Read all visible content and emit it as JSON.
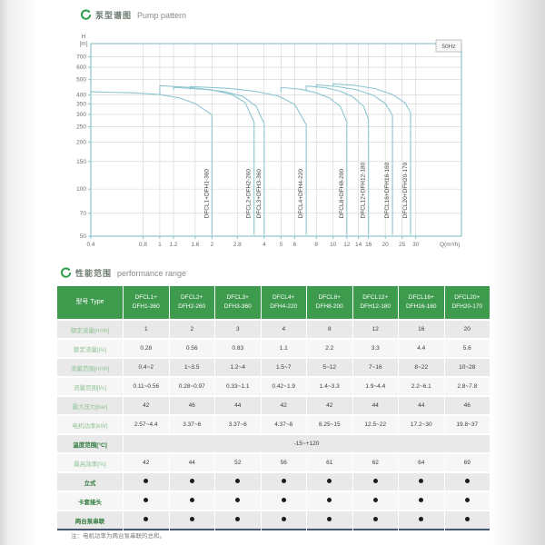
{
  "colors": {
    "brand_green": "#2f9e4c",
    "table_header_green": "#3e9b4e",
    "row_label_green": "#8fc394",
    "curve_blue": "#8cc5d0",
    "axis_teal": "#86bfca",
    "grid_gray": "#d2d2d2"
  },
  "section1": {
    "title_zh": "泵型谱图",
    "title_en": "Pump pattern"
  },
  "section2": {
    "title_zh": "性能范围",
    "title_en": "performance range"
  },
  "chart_data": {
    "type": "line",
    "title": "泵型谱图 Pump pattern",
    "freq_label": "50Hz",
    "ylabel_line1": "H",
    "ylabel_line2": "[m]",
    "xlabel": "Q(m³/h)",
    "x_scale": "log",
    "y_scale": "log",
    "xlim": [
      0.4,
      55
    ],
    "ylim": [
      50,
      850
    ],
    "xticks": [
      0.4,
      0.8,
      1,
      1.2,
      1.6,
      2,
      2.8,
      4,
      5,
      6,
      8,
      10,
      12,
      14,
      16,
      20,
      25,
      30
    ],
    "yticks": [
      700,
      600,
      500,
      400,
      350,
      300,
      250,
      200,
      150,
      100,
      70,
      50
    ],
    "grid": true,
    "series": [
      {
        "name": "DFCL1+DFH1-360",
        "points": [
          [
            0.4,
            418
          ],
          [
            0.7,
            412
          ],
          [
            1.0,
            402
          ],
          [
            1.3,
            382
          ],
          [
            1.6,
            352
          ],
          [
            2,
            298
          ]
        ]
      },
      {
        "name": "DFCL2+DFH2-260",
        "points": [
          [
            1.0,
            404
          ],
          [
            1.0,
            458
          ],
          [
            1.5,
            446
          ],
          [
            2.0,
            430
          ],
          [
            2.6,
            402
          ],
          [
            3.1,
            358
          ],
          [
            3.5,
            268
          ]
        ]
      },
      {
        "name": "DFCL3+DFH3-360",
        "points": [
          [
            1.2,
            430
          ],
          [
            1.2,
            446
          ],
          [
            1.8,
            434
          ],
          [
            2.4,
            418
          ],
          [
            3.0,
            392
          ],
          [
            3.6,
            338
          ],
          [
            4,
            262
          ]
        ]
      },
      {
        "name": "DFCL4+DFH4-220",
        "points": [
          [
            1.5,
            432
          ],
          [
            1.5,
            452
          ],
          [
            2.5,
            440
          ],
          [
            3.5,
            422
          ],
          [
            4.8,
            394
          ],
          [
            6.0,
            348
          ],
          [
            7,
            258
          ]
        ]
      },
      {
        "name": "DFCL8+DFH8-200",
        "points": [
          [
            5.0,
            416
          ],
          [
            5.0,
            446
          ],
          [
            6.5,
            434
          ],
          [
            8.0,
            412
          ],
          [
            9.5,
            382
          ],
          [
            11,
            338
          ],
          [
            12,
            268
          ]
        ]
      },
      {
        "name": "DFCL12+DFH12-180",
        "points": [
          [
            7.0,
            430
          ],
          [
            7.0,
            456
          ],
          [
            9.0,
            444
          ],
          [
            11,
            422
          ],
          [
            13,
            388
          ],
          [
            15,
            338
          ],
          [
            16,
            278
          ]
        ]
      },
      {
        "name": "DFCL16+DFH16-160",
        "points": [
          [
            8.0,
            442
          ],
          [
            8.0,
            464
          ],
          [
            10.5,
            452
          ],
          [
            13.5,
            432
          ],
          [
            17,
            398
          ],
          [
            20,
            352
          ],
          [
            22,
            296
          ]
        ]
      },
      {
        "name": "DFCL20+DFH20-170",
        "points": [
          [
            10,
            452
          ],
          [
            10,
            470
          ],
          [
            13.5,
            459
          ],
          [
            17.5,
            438
          ],
          [
            22,
            402
          ],
          [
            26,
            356
          ],
          [
            28,
            308
          ]
        ]
      }
    ]
  },
  "table": {
    "type_label": "型号 Type",
    "columns": [
      "DFCL1+\nDFH1-360",
      "DFCL2+\nDFH2-260",
      "DFCL3+\nDFH3-360",
      "DFCL4+\nDFH4-220",
      "DFCL8+\nDFH8-200",
      "DFCL12+\nDFH12-180",
      "DFCL16+\nDFH16-160",
      "DFCL20+\nDFH20-170"
    ],
    "rows": [
      {
        "label": "额定流量[m³/h]",
        "style": "normal",
        "values": [
          "1",
          "2",
          "3",
          "4",
          "8",
          "12",
          "16",
          "20"
        ]
      },
      {
        "label": "额定流量[l/s]",
        "style": "normal",
        "values": [
          "0.28",
          "0.56",
          "0.83",
          "1.1",
          "2.2",
          "3.3",
          "4.4",
          "5.6"
        ]
      },
      {
        "label": "流量范围[m³/h]",
        "style": "normal",
        "values": [
          "0.4~2",
          "1~3.5",
          "1.2~4",
          "1.5~7",
          "5~12",
          "7~16",
          "8~22",
          "10~28"
        ]
      },
      {
        "label": "流量范围[l/s]",
        "style": "normal",
        "values": [
          "0.11~0.56",
          "0.28~0.97",
          "0.33~1.1",
          "0.42~1.9",
          "1.4~3.3",
          "1.9~4.4",
          "2.2~6.1",
          "2.8~7.8"
        ]
      },
      {
        "label": "最大压力[bar]",
        "style": "normal",
        "values": [
          "42",
          "46",
          "44",
          "42",
          "42",
          "44",
          "44",
          "46"
        ]
      },
      {
        "label": "电机功率[kW]",
        "style": "normal",
        "values": [
          "2.57~4.4",
          "3.37~6",
          "3.37~6",
          "4.37~8",
          "8.25~15",
          "12.5~22",
          "17.2~30",
          "19.8~37"
        ]
      },
      {
        "label": "温度范围[°C]",
        "style": "bold",
        "span_value": "-15~+120"
      },
      {
        "label": "最高效率[%]",
        "style": "normal",
        "values": [
          "42",
          "44",
          "52",
          "56",
          "61",
          "62",
          "64",
          "69"
        ]
      },
      {
        "label": "立式",
        "style": "bold",
        "dots": [
          true,
          true,
          true,
          true,
          true,
          true,
          true,
          true
        ]
      },
      {
        "label": "卡套接头",
        "style": "bold",
        "dots": [
          true,
          true,
          true,
          true,
          true,
          true,
          true,
          true
        ]
      },
      {
        "label": "两台泵串联",
        "style": "bold",
        "dots": [
          true,
          true,
          true,
          true,
          true,
          true,
          true,
          true
        ]
      }
    ]
  },
  "footnote": "注：电机功率为两台泵串联的总和。"
}
